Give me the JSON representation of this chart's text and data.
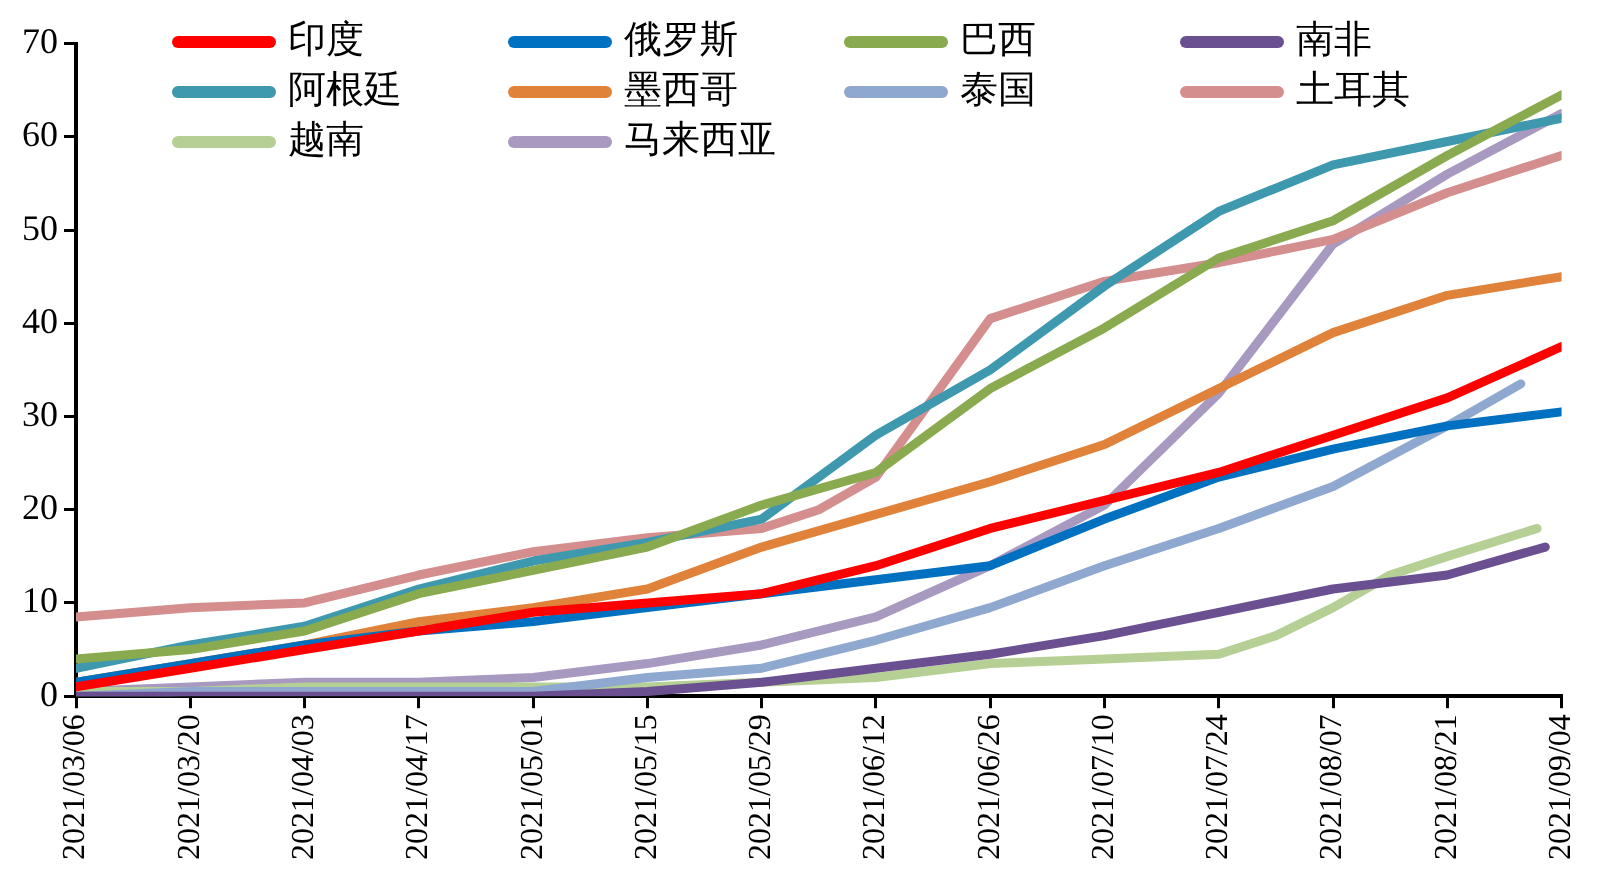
{
  "chart_data": {
    "type": "line",
    "x": [
      "2021-03-06",
      "2021-03-20",
      "2021-04-03",
      "2021-04-17",
      "2021-05-01",
      "2021-05-15",
      "2021-05-29",
      "2021-06-12",
      "2021-06-26",
      "2021-07-10",
      "2021-07-24",
      "2021-08-07",
      "2021-08-21",
      "2021-09-04"
    ],
    "series": [
      {
        "name": "印度",
        "color": "#ff0000",
        "values": [
          1,
          3,
          5,
          7,
          9,
          10,
          11,
          14,
          18,
          21,
          24,
          28,
          32,
          37.5
        ]
      },
      {
        "name": "俄罗斯",
        "color": "#0070c0",
        "values": [
          1.5,
          3.5,
          5.5,
          7,
          8,
          9.5,
          11,
          12.5,
          14,
          19,
          23.5,
          26.5,
          29,
          30.5
        ]
      },
      {
        "name": "巴西",
        "color": "#8aaa4f",
        "values": [
          4,
          5,
          7,
          11,
          13.5,
          16,
          20.5,
          24,
          33,
          39.5,
          47,
          51,
          58,
          64.5
        ]
      },
      {
        "name": "南非",
        "color": "#6a5090",
        "x": [
          "2021-03-06",
          "2021-03-20",
          "2021-04-03",
          "2021-04-17",
          "2021-05-01",
          "2021-05-15",
          "2021-05-29",
          "2021-06-12",
          "2021-06-26",
          "2021-07-10",
          "2021-07-24",
          "2021-08-07",
          "2021-08-21",
          "2021-09-02"
        ],
        "values": [
          0,
          0,
          0,
          0,
          0,
          0.5,
          1.5,
          3,
          4.5,
          6.5,
          9,
          11.5,
          13,
          16
        ]
      },
      {
        "name": "阿根廷",
        "color": "#3e98ae",
        "values": [
          3,
          5.5,
          7.5,
          11.5,
          14.5,
          16.5,
          19,
          28,
          35,
          44,
          52,
          57,
          59.5,
          62
        ]
      },
      {
        "name": "墨西哥",
        "color": "#e0823a",
        "values": [
          1.5,
          3.5,
          5.5,
          8,
          9.5,
          11.5,
          16,
          19.5,
          23,
          27,
          33,
          39,
          43,
          45
        ]
      },
      {
        "name": "泰国",
        "color": "#8fa8cf",
        "x": [
          "2021-03-06",
          "2021-03-20",
          "2021-04-03",
          "2021-04-17",
          "2021-05-01",
          "2021-05-15",
          "2021-05-29",
          "2021-06-12",
          "2021-06-26",
          "2021-07-10",
          "2021-07-24",
          "2021-08-07",
          "2021-08-21",
          "2021-08-30"
        ],
        "values": [
          0,
          0.5,
          0.5,
          0.5,
          0.5,
          2,
          3,
          6,
          9.5,
          14,
          18,
          22.5,
          29,
          33.5
        ]
      },
      {
        "name": "土耳其",
        "color": "#d48e8e",
        "x": [
          "2021-03-06",
          "2021-03-20",
          "2021-04-03",
          "2021-04-17",
          "2021-05-01",
          "2021-05-15",
          "2021-05-29",
          "2021-06-05",
          "2021-06-12",
          "2021-06-19",
          "2021-06-26",
          "2021-07-10",
          "2021-07-24",
          "2021-08-07",
          "2021-08-21",
          "2021-09-04"
        ],
        "values": [
          8.5,
          9.5,
          10,
          13,
          15.5,
          17,
          18,
          20,
          23.5,
          32,
          40.5,
          44.5,
          46.5,
          49,
          54,
          58
        ]
      },
      {
        "name": "越南",
        "color": "#b5cf95",
        "x": [
          "2021-03-06",
          "2021-03-20",
          "2021-04-03",
          "2021-04-17",
          "2021-05-01",
          "2021-05-15",
          "2021-05-29",
          "2021-06-12",
          "2021-06-26",
          "2021-07-10",
          "2021-07-24",
          "2021-07-31",
          "2021-08-07",
          "2021-08-14",
          "2021-08-21",
          "2021-09-01"
        ],
        "values": [
          0.5,
          0.5,
          1,
          1,
          1,
          1,
          1.5,
          2,
          3.5,
          4,
          4.5,
          6.5,
          9.5,
          13,
          15,
          18
        ]
      },
      {
        "name": "马来西亚",
        "color": "#a899c0",
        "values": [
          0.5,
          1,
          1.5,
          1.5,
          2,
          3.5,
          5.5,
          8.5,
          14,
          20.5,
          32.5,
          48.5,
          56,
          62.5
        ]
      }
    ],
    "ylim": [
      0,
      70
    ],
    "yticks": [
      0,
      10,
      20,
      30,
      40,
      50,
      60,
      70
    ],
    "xlim": [
      "2021-03-06",
      "2021-09-04"
    ],
    "xticks": [
      {
        "value": "2021-03-06",
        "label": "2021/03/06"
      },
      {
        "value": "2021-03-20",
        "label": "2021/03/20"
      },
      {
        "value": "2021-04-03",
        "label": "2021/04/03"
      },
      {
        "value": "2021-04-17",
        "label": "2021/04/17"
      },
      {
        "value": "2021-05-01",
        "label": "2021/05/01"
      },
      {
        "value": "2021-05-15",
        "label": "2021/05/15"
      },
      {
        "value": "2021-05-29",
        "label": "2021/05/29"
      },
      {
        "value": "2021-06-12",
        "label": "2021/06/12"
      },
      {
        "value": "2021-06-26",
        "label": "2021/06/26"
      },
      {
        "value": "2021-07-10",
        "label": "2021/07/10"
      },
      {
        "value": "2021-07-24",
        "label": "2021/07/24"
      },
      {
        "value": "2021-08-07",
        "label": "2021/08/07"
      },
      {
        "value": "2021-08-21",
        "label": "2021/08/21"
      },
      {
        "value": "2021-09-04",
        "label": "2021/09/04"
      }
    ],
    "grid": false,
    "legend": "top",
    "marker": "none",
    "line_style": "solid"
  }
}
